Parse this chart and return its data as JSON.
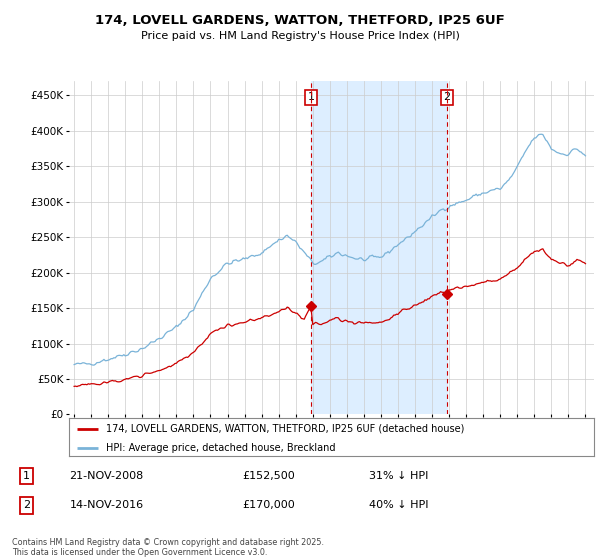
{
  "title_line1": "174, LOVELL GARDENS, WATTON, THETFORD, IP25 6UF",
  "title_line2": "Price paid vs. HM Land Registry's House Price Index (HPI)",
  "ytick_values": [
    0,
    50000,
    100000,
    150000,
    200000,
    250000,
    300000,
    350000,
    400000,
    450000
  ],
  "ylim": [
    0,
    470000
  ],
  "xlim_start": 1994.7,
  "xlim_end": 2025.5,
  "background_color": "#ffffff",
  "plot_bg_color": "#ffffff",
  "grid_color": "#cccccc",
  "hpi_color": "#7ab3d8",
  "price_color": "#cc0000",
  "vspan_color": "#ddeeff",
  "transaction1_date": "21-NOV-2008",
  "transaction1_price": 152500,
  "transaction1_hpi_pct": "31% ↓ HPI",
  "transaction2_date": "14-NOV-2016",
  "transaction2_price": 170000,
  "transaction2_hpi_pct": "40% ↓ HPI",
  "vline1_x": 2008.896,
  "vline2_x": 2016.877,
  "legend_label1": "174, LOVELL GARDENS, WATTON, THETFORD, IP25 6UF (detached house)",
  "legend_label2": "HPI: Average price, detached house, Breckland",
  "footer_text": "Contains HM Land Registry data © Crown copyright and database right 2025.\nThis data is licensed under the Open Government Licence v3.0."
}
